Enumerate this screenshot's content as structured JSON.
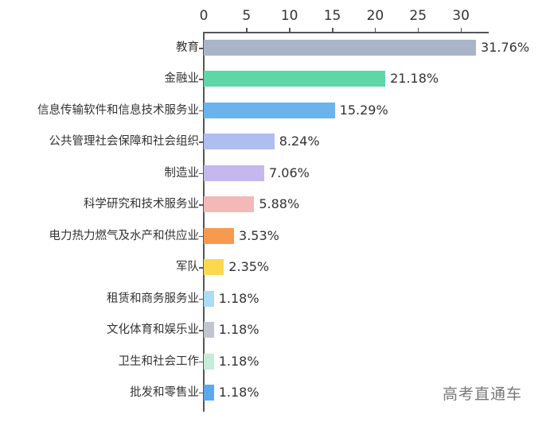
{
  "chart_data": {
    "type": "bar",
    "orientation": "horizontal",
    "title": "",
    "xlabel": "",
    "ylabel": "",
    "xlim": [
      0,
      33.3
    ],
    "x_ticks": [
      0,
      5,
      10,
      15,
      20,
      25,
      30
    ],
    "x_axis_position": "top",
    "grid": false,
    "legend": null,
    "categories": [
      "教育",
      "金融业",
      "信息传输软件和信息技术服务业",
      "公共管理社会保障和社会组织",
      "制造业",
      "科学研究和技术服务业",
      "电力热力燃气及水产和供应业",
      "军队",
      "租赁和商务服务业",
      "文化体育和娱乐业",
      "卫生和社会工作",
      "批发和零售业"
    ],
    "values": [
      31.76,
      21.18,
      15.29,
      8.24,
      7.06,
      5.88,
      3.53,
      2.35,
      1.18,
      1.18,
      1.18,
      1.18
    ],
    "value_labels": [
      "31.76%",
      "21.18%",
      "15.29%",
      "8.24%",
      "7.06%",
      "5.88%",
      "3.53%",
      "2.35%",
      "1.18%",
      "1.18%",
      "1.18%",
      "1.18%"
    ],
    "colors": [
      "#a9b4c8",
      "#5fd6a8",
      "#6ab4ee",
      "#b0bdf0",
      "#c4b8ee",
      "#f3b8b8",
      "#f79a4e",
      "#fbd84e",
      "#a9dcf5",
      "#c0c5d0",
      "#c5ecd8",
      "#5aa9ee"
    ]
  },
  "watermark": "高考直通车"
}
